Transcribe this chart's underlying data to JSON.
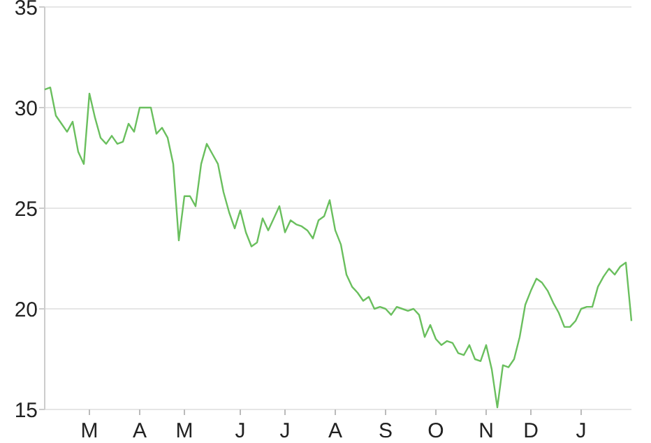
{
  "chart_data": {
    "type": "line",
    "grid": "y",
    "marker": "none",
    "line_style": "solid",
    "ylim": [
      15,
      35
    ],
    "yticks": [
      15,
      20,
      25,
      30,
      35
    ],
    "categories": [
      null,
      null,
      null,
      null,
      null,
      null,
      null,
      null,
      "M",
      null,
      null,
      null,
      null,
      null,
      null,
      null,
      null,
      "A",
      null,
      null,
      null,
      null,
      null,
      null,
      null,
      "M",
      null,
      null,
      null,
      null,
      null,
      null,
      null,
      null,
      null,
      "J",
      null,
      null,
      null,
      null,
      null,
      null,
      null,
      "J",
      null,
      null,
      null,
      null,
      null,
      null,
      null,
      null,
      "A",
      null,
      null,
      null,
      null,
      null,
      null,
      null,
      null,
      "S",
      null,
      null,
      null,
      null,
      null,
      null,
      null,
      null,
      "O",
      null,
      null,
      null,
      null,
      null,
      null,
      null,
      null,
      "N",
      null,
      null,
      null,
      null,
      null,
      null,
      null,
      "D",
      null,
      null,
      null,
      null,
      null,
      null,
      null,
      null,
      "J",
      null,
      null,
      null,
      null,
      null,
      null,
      null,
      null,
      null
    ],
    "series": [
      {
        "color": "#6abf5e",
        "values": [
          30.9,
          31.0,
          29.6,
          29.2,
          28.8,
          29.3,
          27.8,
          27.2,
          30.7,
          29.5,
          28.5,
          28.2,
          28.6,
          28.2,
          28.3,
          29.2,
          28.8,
          30.0,
          30.0,
          30.0,
          28.7,
          29.0,
          28.5,
          27.2,
          23.4,
          25.6,
          25.6,
          25.1,
          27.2,
          28.2,
          27.7,
          27.2,
          25.8,
          24.8,
          24.0,
          24.9,
          23.8,
          23.1,
          23.3,
          24.5,
          23.9,
          24.5,
          25.1,
          23.8,
          24.4,
          24.2,
          24.1,
          23.9,
          23.5,
          24.4,
          24.6,
          25.4,
          23.9,
          23.2,
          21.7,
          21.1,
          20.8,
          20.4,
          20.6,
          20.0,
          20.1,
          20.0,
          19.7,
          20.1,
          20.0,
          19.9,
          20.0,
          19.7,
          18.6,
          19.2,
          18.5,
          18.2,
          18.4,
          18.3,
          17.8,
          17.7,
          18.2,
          17.5,
          17.4,
          18.2,
          17.0,
          15.1,
          17.2,
          17.1,
          17.5,
          18.6,
          20.2,
          20.9,
          21.5,
          21.3,
          20.9,
          20.3,
          19.8,
          19.1,
          19.1,
          19.4,
          20.0,
          20.1,
          20.1,
          21.1,
          21.6,
          22.0,
          21.7,
          22.1,
          22.3,
          19.4
        ]
      }
    ]
  }
}
